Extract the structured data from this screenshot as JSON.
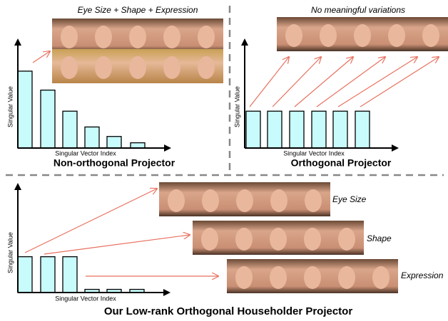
{
  "chart_data": [
    {
      "type": "bar",
      "title": "Non-orthogonal Projector",
      "caption": "Eye Size + Shape + Expression",
      "xlabel": "Singular Vector Index",
      "ylabel": "Singular Value",
      "values": [
        0.73,
        0.55,
        0.35,
        0.2,
        0.11,
        0.05
      ],
      "ylim": [
        0,
        1
      ],
      "color": "#c8fcfc"
    },
    {
      "type": "bar",
      "title": "Orthogonal Projector",
      "caption": "No meaningful variations",
      "xlabel": "Singular Vector Index",
      "ylabel": "Singular Value",
      "values": [
        0.35,
        0.35,
        0.35,
        0.35,
        0.35,
        0.35
      ],
      "ylim": [
        0,
        1
      ],
      "color": "#c8fcfc"
    },
    {
      "type": "bar",
      "title": "Our Low-rank Orthogonal Householder Projector",
      "xlabel": "Singular Vector Index",
      "ylabel": "Singular Value",
      "values": [
        0.34,
        0.34,
        0.34,
        0.03,
        0.03,
        0.03
      ],
      "ylim": [
        0,
        1
      ],
      "color": "#c8fcfc",
      "row_labels": [
        "Eye Size",
        "Shape",
        "Expression"
      ]
    }
  ]
}
